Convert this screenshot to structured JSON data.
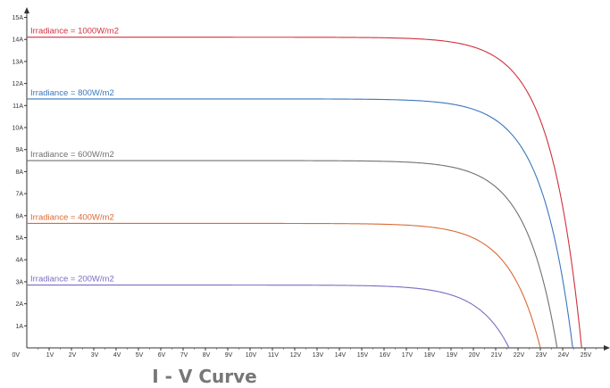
{
  "chart_data": {
    "type": "line",
    "title": "I - V Curve",
    "xlabel": "",
    "ylabel": "",
    "xlim": [
      0,
      26
    ],
    "ylim": [
      0,
      15.5
    ],
    "x_ticks": [
      "0V",
      "1V",
      "2V",
      "3V",
      "4V",
      "5V",
      "6V",
      "7V",
      "8V",
      "9V",
      "10V",
      "11V",
      "12V",
      "13V",
      "14V",
      "15V",
      "16V",
      "17V",
      "18V",
      "19V",
      "20V",
      "21V",
      "22V",
      "23V",
      "24V",
      "25V"
    ],
    "y_ticks": [
      "1A",
      "2A",
      "3A",
      "4A",
      "5A",
      "6A",
      "7A",
      "8A",
      "9A",
      "10A",
      "11A",
      "12A",
      "13A",
      "14A",
      "15A"
    ],
    "grid": false,
    "series": [
      {
        "name": "Irradiance = 1000W/m2",
        "color": "#d0303e",
        "isc": 14.1,
        "voc": 24.85
      },
      {
        "name": "Irradiance = 800W/m2",
        "color": "#3a77bc",
        "isc": 11.3,
        "voc": 24.45
      },
      {
        "name": "Irradiance = 600W/m2",
        "color": "#707070",
        "isc": 8.5,
        "voc": 23.75
      },
      {
        "name": "Irradiance = 400W/m2",
        "color": "#d96a36",
        "isc": 5.65,
        "voc": 23.0
      },
      {
        "name": "Irradiance = 200W/m2",
        "color": "#7a6cc0",
        "isc": 2.85,
        "voc": 21.6
      }
    ]
  }
}
